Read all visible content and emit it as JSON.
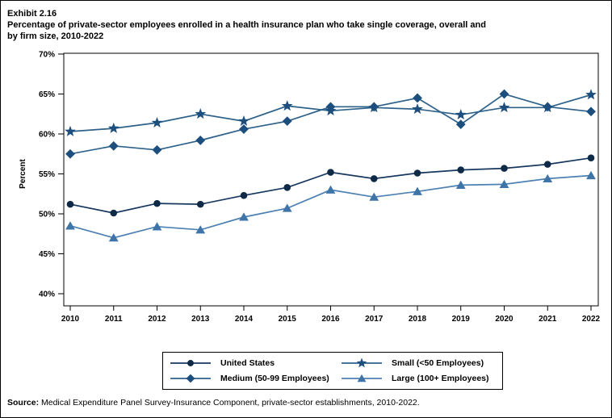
{
  "header": {
    "exhibit": "Exhibit 2.16",
    "title": "Percentage of private-sector employees enrolled in a health insurance plan who take single coverage, overall and by firm size, 2010-2022",
    "title_line1": "Percentage of private-sector employees enrolled in a health insurance plan who take single coverage, overall and",
    "title_line2": "by firm size, 2010-2022"
  },
  "chart_data": {
    "type": "line",
    "title": "Percentage of private-sector employees enrolled in a health insurance plan who take single coverage, overall and by firm size, 2010-2022",
    "x": [
      2010,
      2011,
      2012,
      2013,
      2014,
      2015,
      2016,
      2017,
      2018,
      2019,
      2020,
      2021,
      2022
    ],
    "xlabel": "",
    "ylabel": "Percent",
    "ylim": [
      40,
      70
    ],
    "ytick_step": 5,
    "ytick_suffix": "%",
    "grid": false,
    "legend_position": "bottom",
    "series": [
      {
        "name": "United States",
        "marker": "circle",
        "marker_color": "#0e2a47",
        "line_color": "#17375e",
        "values": [
          51.2,
          50.1,
          51.3,
          51.2,
          52.3,
          53.3,
          55.2,
          54.4,
          55.1,
          55.5,
          55.7,
          56.2,
          57.0
        ]
      },
      {
        "name": "Small (<50 Employees)",
        "marker": "star",
        "marker_color": "#1c4e7e",
        "line_color": "#2d6189",
        "values": [
          60.3,
          60.7,
          61.4,
          62.5,
          61.6,
          63.5,
          62.9,
          63.3,
          63.1,
          62.4,
          63.3,
          63.3,
          64.9
        ]
      },
      {
        "name": "Medium (50-99 Employees)",
        "marker": "diamond",
        "marker_color": "#1c4e7e",
        "line_color": "#2d6189",
        "values": [
          57.5,
          58.5,
          58.0,
          59.2,
          60.6,
          61.6,
          63.4,
          63.4,
          64.5,
          61.2,
          65.0,
          63.4,
          62.8
        ]
      },
      {
        "name": "Large (100+ Employees)",
        "marker": "triangle",
        "marker_color": "#3f74a8",
        "line_color": "#4d80b2",
        "values": [
          48.5,
          47.0,
          48.4,
          48.0,
          49.6,
          50.7,
          53.0,
          52.1,
          52.8,
          53.6,
          53.7,
          54.4,
          54.8
        ]
      }
    ]
  },
  "footer": {
    "label": "Source:",
    "text": " Medical Expenditure Panel Survey-Insurance Component, private-sector establishments, 2010-2022."
  }
}
